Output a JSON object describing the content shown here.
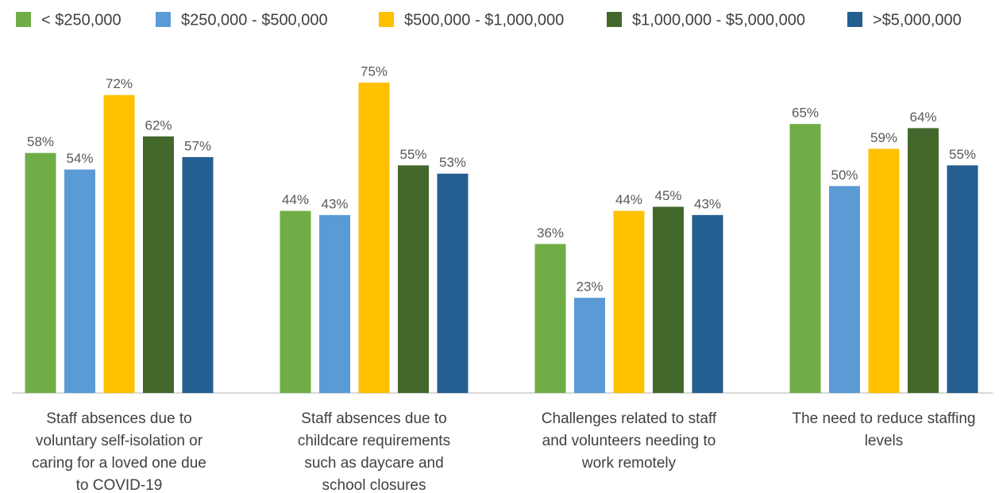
{
  "chart_data": {
    "type": "bar",
    "categories": [
      "Staff absences due to voluntary self-isolation or caring for a loved one due to COVID-19",
      "Staff absences due to childcare requirements such as daycare and school closures",
      "Challenges related to staff and volunteers needing to work remotely",
      "The need to reduce staffing levels"
    ],
    "series": [
      {
        "name": "< $250,000",
        "color": "#70ad47",
        "values": [
          58,
          44,
          36,
          65
        ],
        "value_labels": [
          "58%",
          "44%",
          "36%",
          "65%"
        ]
      },
      {
        "name": "$250,000 - $500,000",
        "color": "#5b9bd5",
        "values": [
          54,
          43,
          23,
          50
        ],
        "value_labels": [
          "54%",
          "43%",
          "23%",
          "50%"
        ]
      },
      {
        "name": "$500,000 - $1,000,000",
        "color": "#ffc000",
        "values": [
          72,
          75,
          44,
          59
        ],
        "value_labels": [
          "72%",
          "75%",
          "44%",
          "59%"
        ]
      },
      {
        "name": "$1,000,000 - $5,000,000",
        "color": "#43682b",
        "values": [
          62,
          55,
          45,
          64
        ],
        "value_labels": [
          "62%",
          "55%",
          "45%",
          "64%"
        ]
      },
      {
        "name": ">$5,000,000",
        "color": "#255e91",
        "values": [
          57,
          53,
          43,
          55
        ],
        "value_labels": [
          "57%",
          "53%",
          "43%",
          "55%"
        ]
      }
    ],
    "ylim": [
      0,
      80
    ],
    "legend": "top"
  }
}
